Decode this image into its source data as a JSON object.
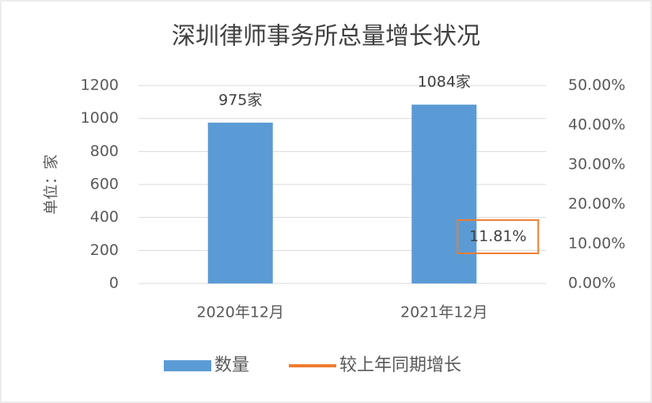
{
  "chart_data": {
    "type": "bar",
    "title": "深圳律师事务所总量增长状况",
    "y_label": "单位：家",
    "categories": [
      "2020年12月",
      "2021年12月"
    ],
    "series": [
      {
        "name": "数量",
        "type": "bar",
        "color": "#5b9bd5",
        "values": [
          975,
          1084
        ],
        "value_labels": [
          "975家",
          "1084家"
        ]
      },
      {
        "name": "较上年同期增长",
        "type": "line",
        "axis": "y2",
        "color": "#ed7d31",
        "values": [
          null,
          11.81
        ],
        "value_labels": [
          null,
          "11.81%"
        ]
      }
    ],
    "ylim": [
      0,
      1200
    ],
    "yticks": [
      0,
      200,
      400,
      600,
      800,
      1000,
      1200
    ],
    "y2lim": [
      0,
      50
    ],
    "y2ticks": [
      {
        "value": 0,
        "label": "0.00%"
      },
      {
        "value": 10,
        "label": "10.00%"
      },
      {
        "value": 20,
        "label": "20.00%"
      },
      {
        "value": 30,
        "label": "30.00%"
      },
      {
        "value": 40,
        "label": "40.00%"
      },
      {
        "value": 50,
        "label": "50.00%"
      }
    ],
    "grid": true,
    "legend": "bottom"
  }
}
